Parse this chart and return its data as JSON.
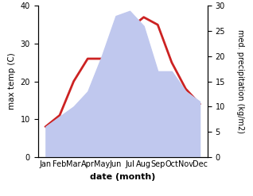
{
  "months": [
    "Jan",
    "Feb",
    "Mar",
    "Apr",
    "May",
    "Jun",
    "Jul",
    "Aug",
    "Sep",
    "Oct",
    "Nov",
    "Dec"
  ],
  "temp": [
    8,
    11,
    20,
    26,
    26,
    28,
    34,
    37,
    35,
    25,
    18,
    14
  ],
  "precip": [
    6,
    8,
    10,
    13,
    20,
    28,
    29,
    26,
    17,
    17,
    13,
    11
  ],
  "temp_color": "#cc2222",
  "precip_color": "#c0c8ee",
  "temp_ylim": [
    0,
    40
  ],
  "precip_ylim": [
    0,
    30
  ],
  "temp_yticks": [
    0,
    10,
    20,
    30,
    40
  ],
  "precip_yticks": [
    0,
    5,
    10,
    15,
    20,
    25,
    30
  ],
  "ylabel_left": "max temp (C)",
  "ylabel_right": "med. precipitation (kg/m2)",
  "xlabel": "date (month)",
  "background_color": "#ffffff"
}
